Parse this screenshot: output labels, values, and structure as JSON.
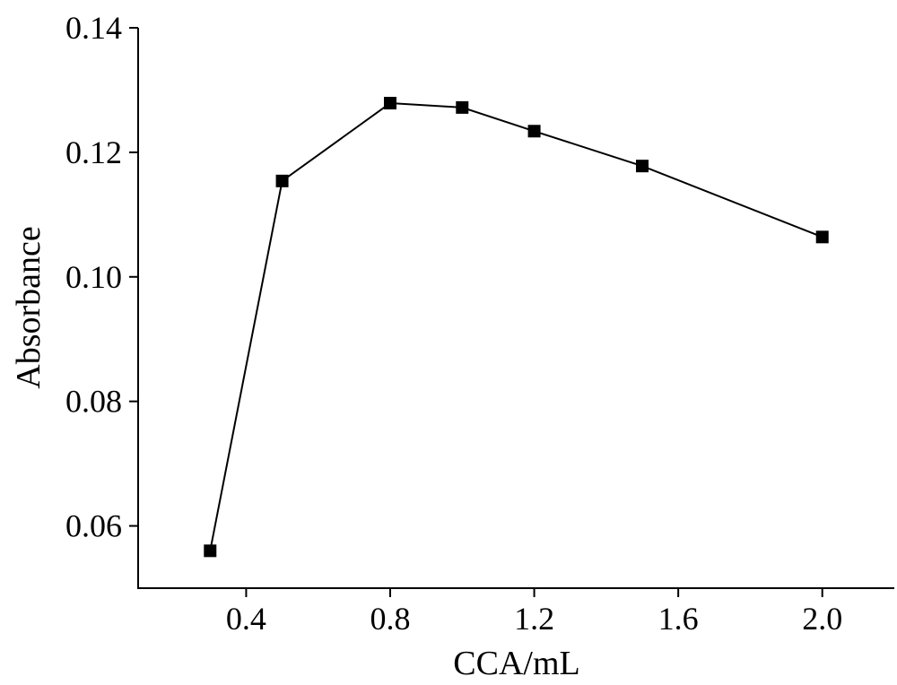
{
  "chart_data": {
    "type": "line",
    "title": "",
    "xlabel": "CCA/mL",
    "ylabel": "Absorbance",
    "xlim": [
      0.1,
      2.2
    ],
    "ylim": [
      0.05,
      0.14
    ],
    "xticks": [
      0.4,
      0.8,
      1.2,
      1.6,
      2.0
    ],
    "xtick_labels": [
      "0.4",
      "0.8",
      "1.2",
      "1.6",
      "2.0"
    ],
    "yticks": [
      0.06,
      0.08,
      0.1,
      0.12,
      0.14
    ],
    "ytick_labels": [
      "0.06",
      "0.08",
      "0.10",
      "0.12",
      "0.14"
    ],
    "grid": false,
    "marker": "square",
    "series": [
      {
        "x": [
          0.3,
          0.5,
          0.8,
          1.0,
          1.2,
          1.5,
          2.0
        ],
        "y": [
          0.056,
          0.1154,
          0.1279,
          0.1272,
          0.1234,
          0.1178,
          0.1064
        ]
      }
    ],
    "colors": {
      "line": "#000000",
      "marker": "#000000",
      "axis": "#000000"
    }
  }
}
